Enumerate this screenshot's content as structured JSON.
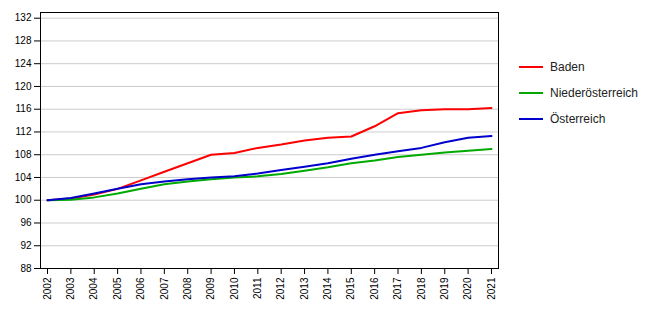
{
  "chart_data": {
    "type": "line",
    "x": [
      2002,
      2003,
      2004,
      2005,
      2006,
      2007,
      2008,
      2009,
      2010,
      2011,
      2012,
      2013,
      2014,
      2015,
      2016,
      2017,
      2018,
      2019,
      2020,
      2021
    ],
    "series": [
      {
        "name": "Baden",
        "color": "#ff0000",
        "values": [
          100.0,
          100.3,
          101.0,
          102.0,
          103.5,
          105.0,
          106.5,
          108.0,
          108.3,
          109.2,
          109.8,
          110.5,
          111.0,
          111.2,
          113.0,
          115.3,
          115.8,
          116.0,
          116.0,
          116.2
        ]
      },
      {
        "name": "Niederösterreich",
        "color": "#00aa00",
        "values": [
          100.0,
          100.1,
          100.5,
          101.2,
          102.0,
          102.8,
          103.3,
          103.7,
          104.0,
          104.2,
          104.6,
          105.2,
          105.8,
          106.5,
          107.0,
          107.6,
          108.0,
          108.4,
          108.7,
          109.0
        ]
      },
      {
        "name": "Österreich",
        "color": "#0000cc",
        "values": [
          100.0,
          100.4,
          101.2,
          102.0,
          102.8,
          103.3,
          103.7,
          104.0,
          104.2,
          104.7,
          105.3,
          105.9,
          106.5,
          107.3,
          108.0,
          108.6,
          109.2,
          110.2,
          111.0,
          111.3
        ]
      }
    ],
    "xlim": [
      2001.7,
      2021.3
    ],
    "xticks": [
      2002,
      2003,
      2004,
      2005,
      2006,
      2007,
      2008,
      2009,
      2010,
      2011,
      2012,
      2013,
      2014,
      2015,
      2016,
      2017,
      2018,
      2019,
      2020,
      2021
    ],
    "ylim": [
      88,
      133
    ],
    "yticks": [
      88,
      92,
      96,
      100,
      104,
      108,
      112,
      116,
      120,
      124,
      128,
      132
    ],
    "grid": true,
    "legend": "right"
  }
}
